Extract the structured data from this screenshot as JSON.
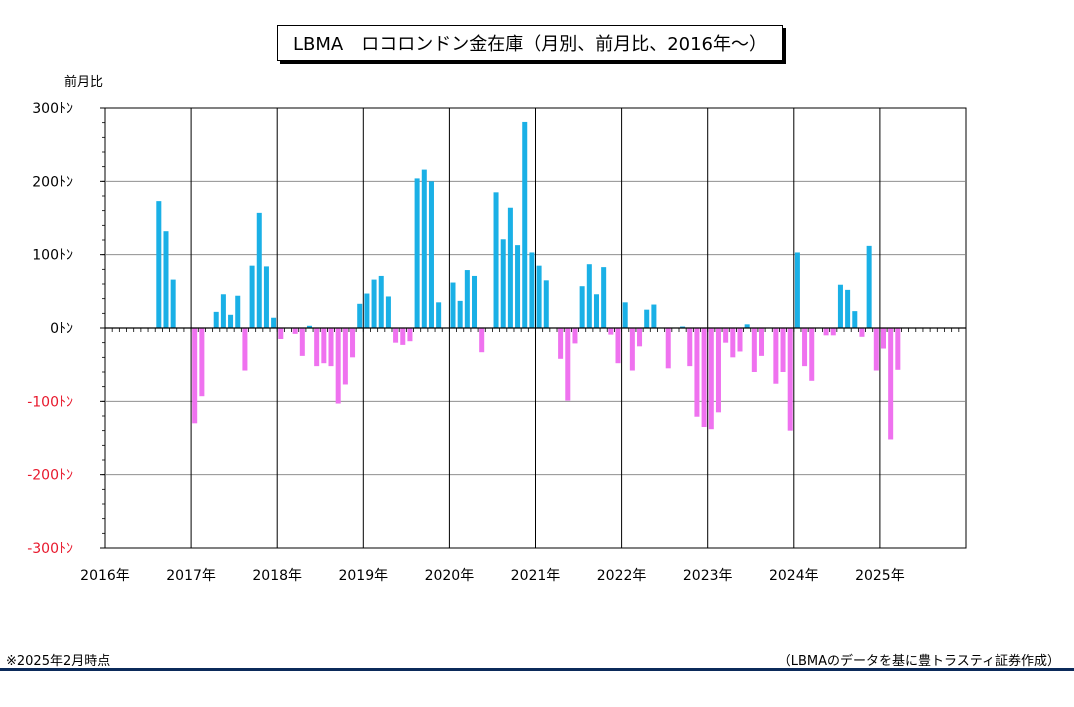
{
  "title": "LBMA　ロコロンドン金在庫（月別、前月比、2016年～）",
  "footnote": "※2025年2月時点",
  "source": "（LBMAのデータを基に豊トラスティ証券作成）",
  "colors": {
    "positive": "#1ab0e6",
    "negative": "#ef72ef",
    "negative_label": "#e8182c",
    "grid": "#7f7f7f",
    "rule": "#0b2a5a"
  },
  "chart_data": {
    "type": "bar",
    "ylabel": "前月比",
    "ylim": [
      -300,
      300
    ],
    "yticks": [
      300,
      200,
      100,
      0,
      -100,
      -200,
      -300
    ],
    "ytick_labels": [
      "300ﾄﾝ",
      "200ﾄﾝ",
      "100ﾄﾝ",
      "0ﾄﾝ",
      "-100ﾄﾝ",
      "-200ﾄﾝ",
      "-300ﾄﾝ"
    ],
    "xtick_labels": [
      "2016年",
      "2017年",
      "2018年",
      "2019年",
      "2020年",
      "2021年",
      "2022年",
      "2023年",
      "2024年",
      "2025年"
    ],
    "grid": true,
    "start": "2016-01",
    "series": [
      {
        "values": [
          0,
          0,
          0,
          0,
          0,
          0,
          0,
          173,
          132,
          66,
          0,
          0,
          -130,
          -93,
          0,
          22,
          46,
          18,
          44,
          -58,
          85,
          157,
          84,
          14,
          -15,
          0,
          -8,
          -38,
          3,
          -52,
          -48,
          -52,
          -103,
          -77,
          -40,
          33,
          47,
          66,
          71,
          43,
          -20,
          -23,
          -18,
          204,
          216,
          200,
          35,
          0,
          62,
          37,
          79,
          71,
          -33,
          0,
          185,
          121,
          164,
          113,
          281,
          103,
          85,
          65,
          0,
          -42,
          -99,
          -21,
          57,
          87,
          46,
          83,
          -9,
          -48,
          35,
          -58,
          -25,
          25,
          32,
          0,
          -55,
          0,
          2,
          -52,
          -121,
          -135,
          -138,
          -115,
          -20,
          -40,
          -32,
          5,
          -60,
          -38,
          0,
          -76,
          -60,
          -140,
          103,
          -52,
          -72,
          0,
          -10,
          -10,
          59,
          52,
          23,
          -12,
          112,
          -58,
          -28,
          -152,
          -57
        ]
      }
    ]
  }
}
